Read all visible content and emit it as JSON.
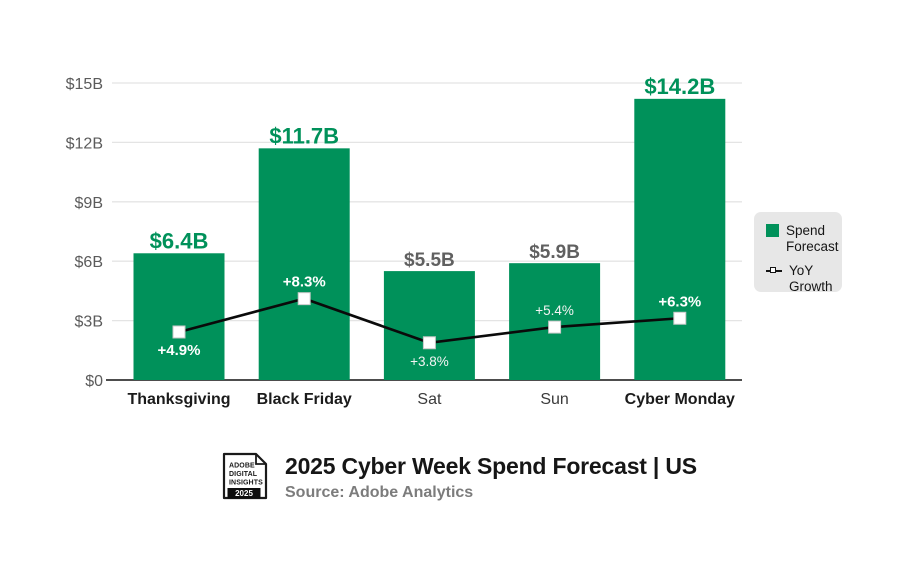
{
  "chart_data": {
    "type": "bar+line",
    "title": "2025 Cyber Week Spend Forecast | US",
    "source": "Source: Adobe Analytics",
    "categories": [
      "Thanksgiving",
      "Black Friday",
      "Sat",
      "Sun",
      "Cyber Monday"
    ],
    "category_emphasis": [
      true,
      true,
      false,
      false,
      true
    ],
    "series": [
      {
        "name": "Spend Forecast",
        "type": "bar",
        "values": [
          6.4,
          11.7,
          5.5,
          5.9,
          14.2
        ],
        "labels": [
          "$6.4B",
          "$11.7B",
          "$5.5B",
          "$5.9B",
          "$14.2B"
        ],
        "label_emphasis": [
          true,
          true,
          false,
          false,
          true
        ],
        "color": "#00915a"
      },
      {
        "name": "YoY Growth",
        "type": "line",
        "values": [
          4.9,
          8.3,
          3.8,
          5.4,
          6.3
        ],
        "labels": [
          "+4.9%",
          "+8.3%",
          "+3.8%",
          "+5.4%",
          "+6.3%"
        ],
        "label_position": [
          "below",
          "above",
          "below",
          "above",
          "above"
        ],
        "label_emphasis": [
          true,
          true,
          false,
          false,
          true
        ],
        "color": "#0a0a0a",
        "marker": "white-square"
      }
    ],
    "y_axis": {
      "ticks": [
        "$0",
        "$3B",
        "$6B",
        "$9B",
        "$12B",
        "$15B"
      ],
      "tick_values": [
        0,
        3,
        6,
        9,
        12,
        15
      ],
      "max": 15
    },
    "grid": true,
    "legend_position": "right",
    "colors": {
      "bar_green": "#00915a",
      "label_gray": "#606060",
      "grid": "#e4e4e4",
      "axis": "#4d4d4d",
      "marker_fill": "#ffffff",
      "marker_stroke": "#c8c8c8"
    }
  },
  "legend": {
    "items": [
      {
        "label": "Spend Forecast",
        "swatch": "bar-swatch"
      },
      {
        "label": "YoY Growth",
        "swatch": "line-marker-swatch"
      }
    ]
  },
  "footer": {
    "logo": {
      "line1": "ADOBE",
      "line2": "DIGITAL",
      "line3": "INSIGHTS",
      "year": "2025"
    },
    "title": "2025 Cyber Week Spend Forecast | US",
    "source": "Source: Adobe Analytics"
  }
}
